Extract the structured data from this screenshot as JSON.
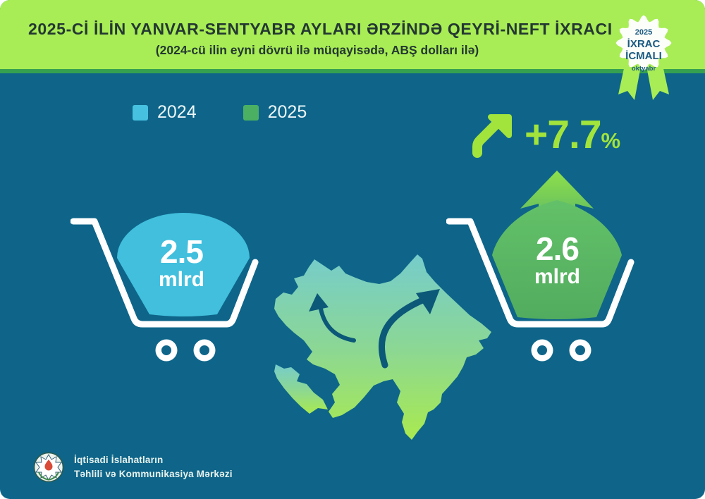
{
  "header": {
    "title": "2025-Cİ İLİN YANVAR-SENTYABR AYLARI ƏRZİNDƏ QEYRİ-NEFT İXRACI",
    "subtitle": "(2024-cü ilin eyni dövrü ilə müqayisədə, ABŞ dolları ilə)"
  },
  "badge": {
    "year": "2025",
    "line1": "İXRAC",
    "line2": "İCMALI",
    "month": "oktyabr"
  },
  "legend": {
    "items": [
      {
        "label": "2024",
        "color": "#47C1E0"
      },
      {
        "label": "2025",
        "color": "#4CB062"
      }
    ]
  },
  "growth": {
    "value": "+7.7",
    "unit": "%"
  },
  "carts": [
    {
      "year": "2024",
      "value": "2.5",
      "unit": "mlrd",
      "color": "#41BFDD"
    },
    {
      "year": "2025",
      "value": "2.6",
      "unit": "mlrd",
      "color": "#57B366"
    }
  ],
  "footer": {
    "org_line1": "İqtisadi İslahatların",
    "org_line2": "Təhlili və Kommunikasiya Mərkəzi"
  },
  "colors": {
    "background": "#0E6589",
    "header-bg": "#A8ED55",
    "header-divider": "#35A050",
    "accent-lime": "#A2E43C",
    "title-text": "#243832",
    "badge-text": "#1A5B82",
    "blob-blue": "#41BFDD",
    "blob-green": "#57B366",
    "map-arrow": "#0B5878"
  },
  "chart_data": {
    "type": "bar",
    "title": "2025-Cİ İLİN YANVAR-SENTYABR AYLARI ƏRZİNDƏ QEYRİ-NEFT İXRACI",
    "subtitle": "(2024-cü ilin eyni dövrü ilə müqayisədə, ABŞ dolları ilə)",
    "categories": [
      "2024",
      "2025"
    ],
    "values": [
      2.5,
      2.6
    ],
    "unit": "mlrd ABŞ dolları",
    "value_labels": [
      "2.5 mlrd",
      "2.6 mlrd"
    ],
    "change": "+7.7%",
    "legend": [
      "2024",
      "2025"
    ],
    "legend_position": "top-left",
    "notes": "pictorial chart: shopping carts over Azerbaijan map, badge 2025 İXRAC İCMALI oktyabr"
  }
}
